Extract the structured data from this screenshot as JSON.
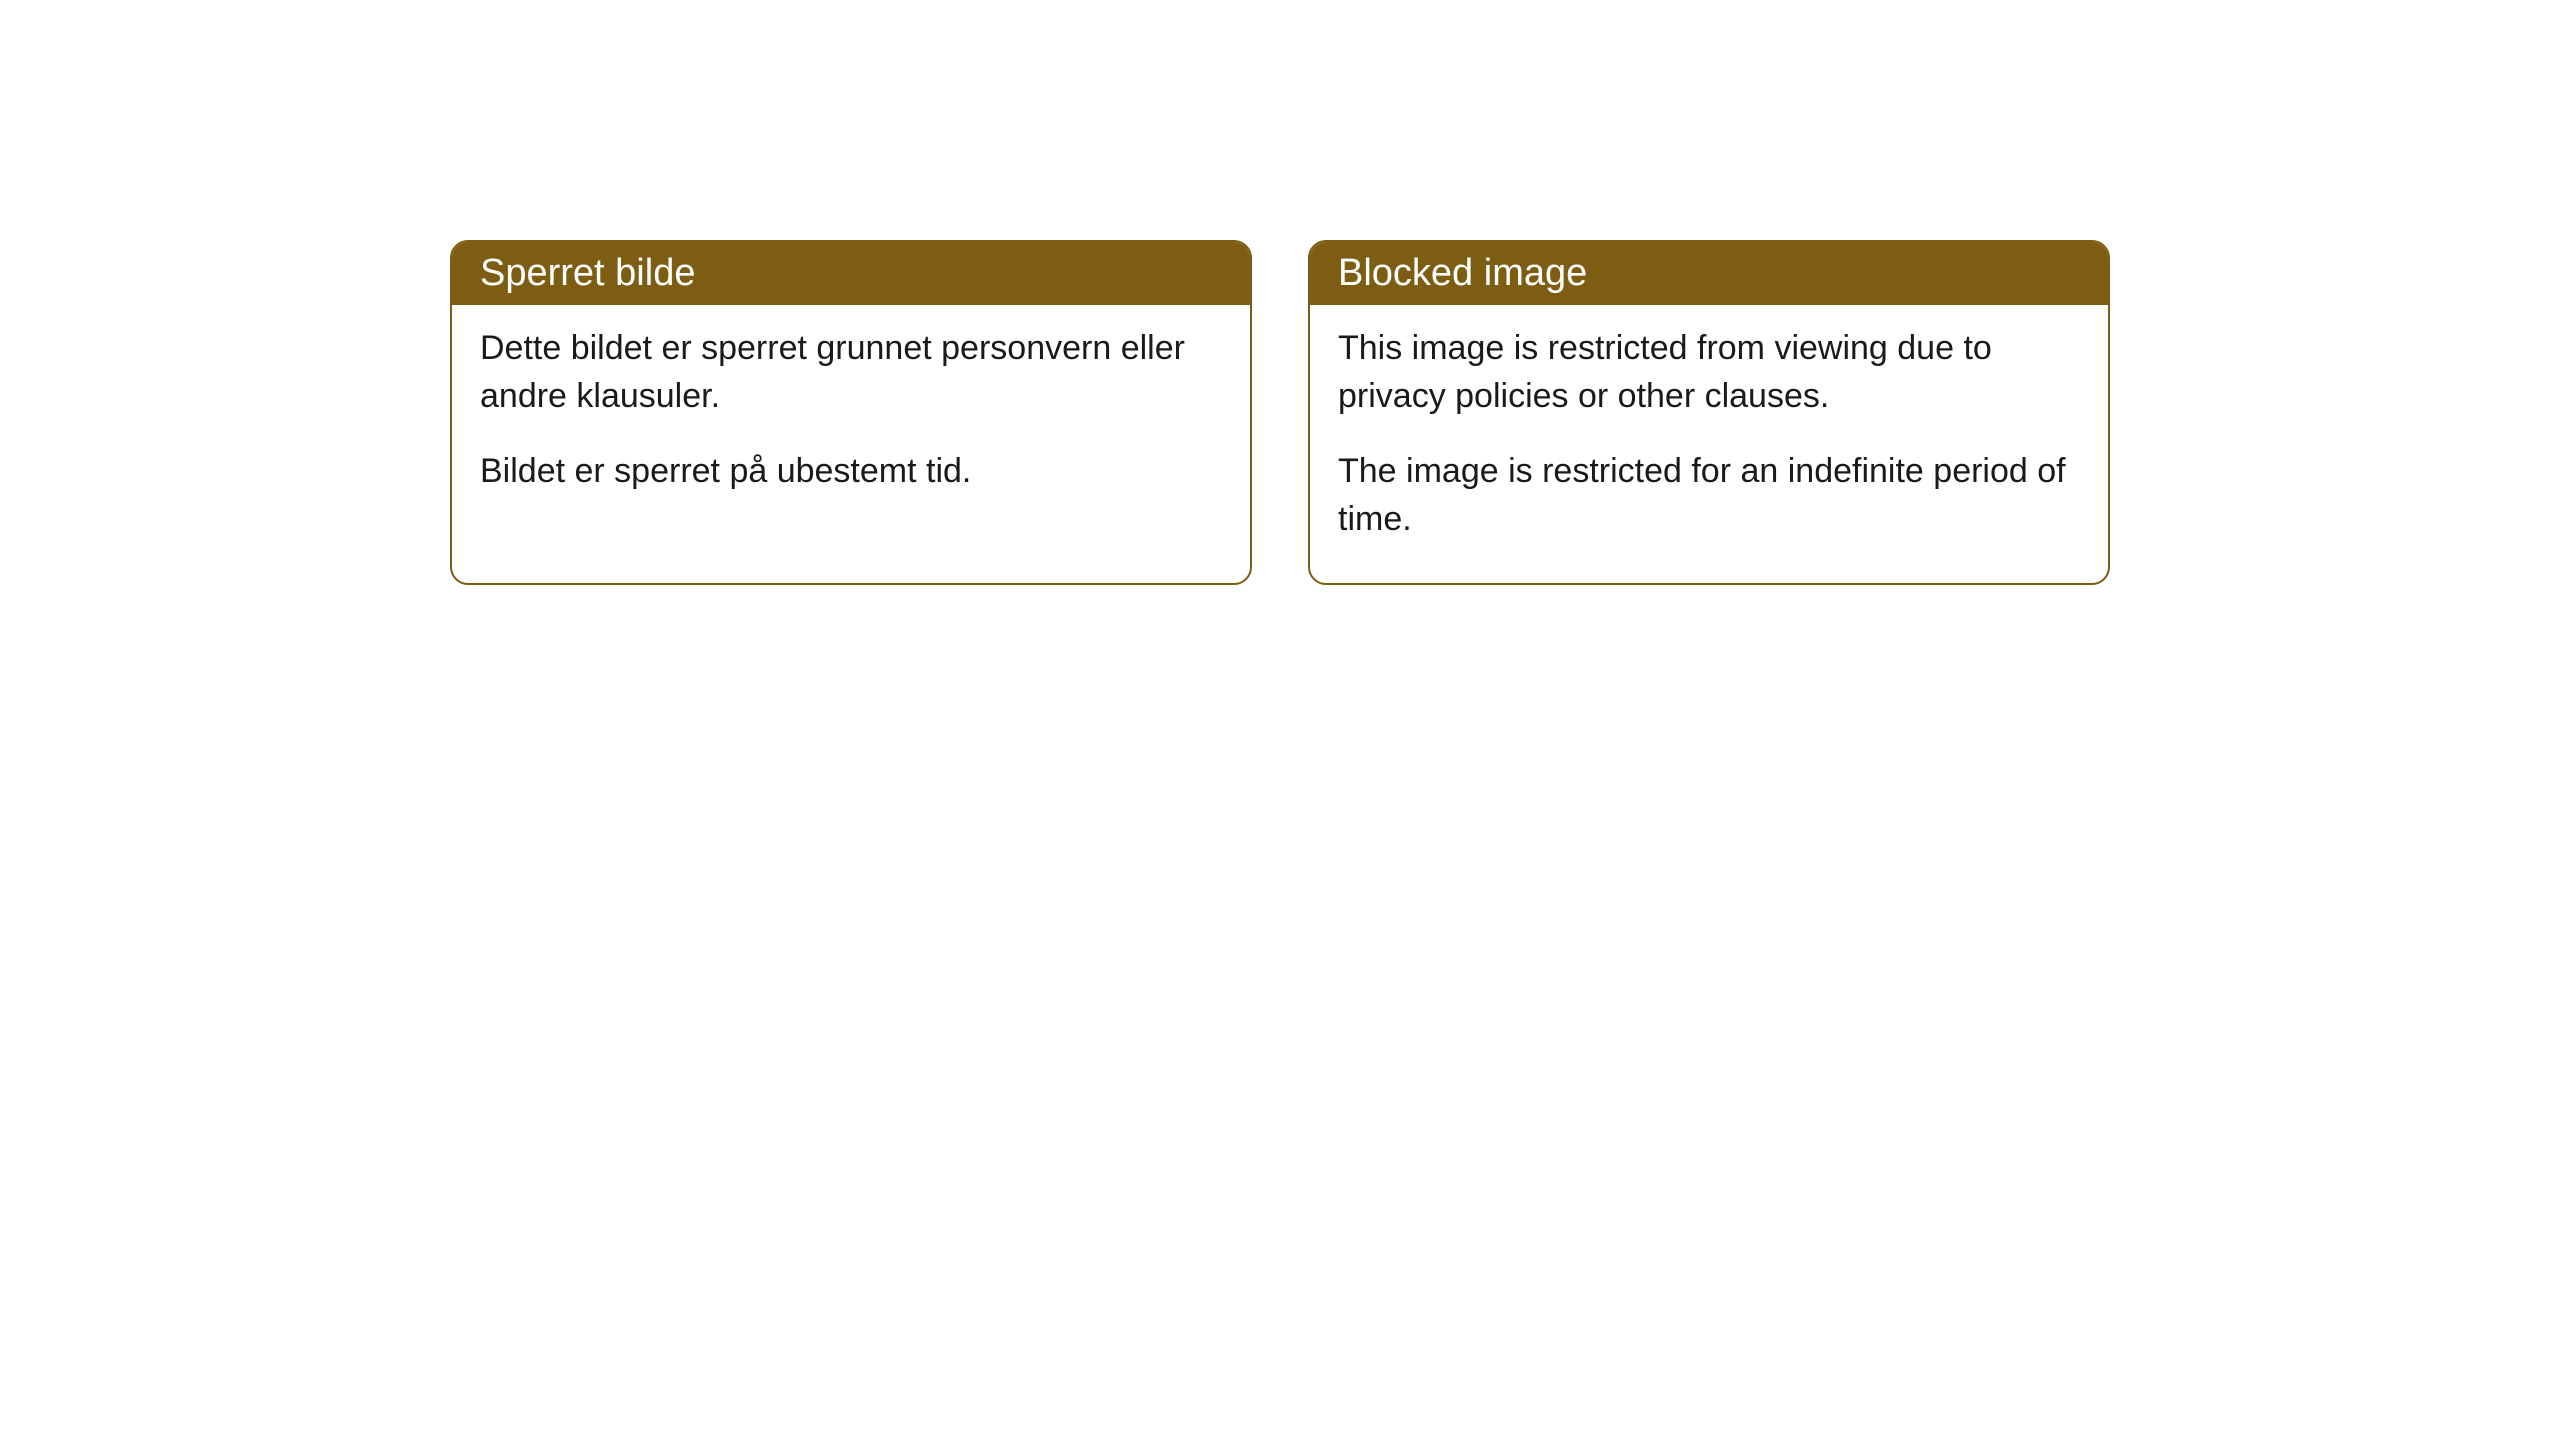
{
  "cards": [
    {
      "title": "Sperret bilde",
      "paragraph1": "Dette bildet er sperret grunnet personvern eller andre klausuler.",
      "paragraph2": "Bildet er sperret på ubestemt tid."
    },
    {
      "title": "Blocked image",
      "paragraph1": "This image is restricted from viewing due to privacy policies or other clauses.",
      "paragraph2": "The image is restricted for an indefinite period of time."
    }
  ],
  "styling": {
    "header_background": "#7d5d11",
    "header_text_color": "#ffffff",
    "border_color": "#7d5d11",
    "body_background": "#ffffff",
    "body_text_color": "#1a1a1a",
    "border_radius": 18,
    "header_fontsize": 38,
    "body_fontsize": 34
  }
}
